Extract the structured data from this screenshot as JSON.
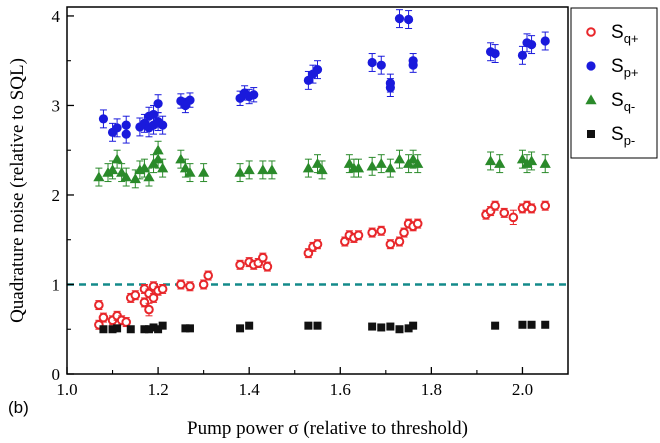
{
  "chart_data": {
    "type": "scatter",
    "panel_label": "(b)",
    "xlabel": "Pump power σ (relative to threshold)",
    "ylabel": "Quadrature noise (relative to SQL)",
    "xlim": [
      1.0,
      2.1
    ],
    "ylim": [
      0,
      4.1
    ],
    "xticks": [
      "1.0",
      "1.2",
      "1.4",
      "1.6",
      "1.8",
      "2.0"
    ],
    "yticks": [
      "0",
      "1",
      "2",
      "3",
      "4"
    ],
    "xtick_values": [
      1.0,
      1.2,
      1.4,
      1.6,
      1.8,
      2.0
    ],
    "ytick_values": [
      0,
      1,
      2,
      3,
      4
    ],
    "reference_line": {
      "y": 1.0,
      "style": "dashed",
      "color": "#138a8a"
    },
    "legend_position": "top-right",
    "series": [
      {
        "name": "S",
        "name_sub": "q+",
        "marker": "open-circle",
        "color": "#e8262a",
        "points": [
          [
            1.07,
            0.77
          ],
          [
            1.07,
            0.55
          ],
          [
            1.08,
            0.63
          ],
          [
            1.1,
            0.6
          ],
          [
            1.11,
            0.65
          ],
          [
            1.12,
            0.6
          ],
          [
            1.13,
            0.58
          ],
          [
            1.14,
            0.85
          ],
          [
            1.15,
            0.88
          ],
          [
            1.17,
            0.8
          ],
          [
            1.17,
            0.95
          ],
          [
            1.18,
            0.72
          ],
          [
            1.18,
            0.9
          ],
          [
            1.19,
            0.85
          ],
          [
            1.19,
            0.98
          ],
          [
            1.2,
            0.93
          ],
          [
            1.21,
            0.95
          ],
          [
            1.25,
            1.0
          ],
          [
            1.27,
            0.98
          ],
          [
            1.3,
            1.0
          ],
          [
            1.31,
            1.1
          ],
          [
            1.38,
            1.22
          ],
          [
            1.4,
            1.25
          ],
          [
            1.41,
            1.22
          ],
          [
            1.42,
            1.24
          ],
          [
            1.43,
            1.3
          ],
          [
            1.44,
            1.2
          ],
          [
            1.53,
            1.35
          ],
          [
            1.54,
            1.42
          ],
          [
            1.55,
            1.45
          ],
          [
            1.61,
            1.48
          ],
          [
            1.62,
            1.55
          ],
          [
            1.63,
            1.52
          ],
          [
            1.64,
            1.55
          ],
          [
            1.67,
            1.58
          ],
          [
            1.69,
            1.6
          ],
          [
            1.71,
            1.45
          ],
          [
            1.73,
            1.48
          ],
          [
            1.74,
            1.58
          ],
          [
            1.75,
            1.68
          ],
          [
            1.76,
            1.65
          ],
          [
            1.77,
            1.68
          ],
          [
            1.92,
            1.78
          ],
          [
            1.93,
            1.82
          ],
          [
            1.94,
            1.88
          ],
          [
            1.96,
            1.8
          ],
          [
            1.98,
            1.75
          ],
          [
            2.0,
            1.85
          ],
          [
            2.01,
            1.88
          ],
          [
            2.02,
            1.85
          ],
          [
            2.05,
            1.88
          ]
        ],
        "errors": [
          0.05,
          0.05,
          0.05,
          0.05,
          0.05,
          0.05,
          0.05,
          0.05,
          0.05,
          0.05,
          0.05,
          0.07,
          0.05,
          0.05,
          0.05,
          0.05,
          0.05,
          0.05,
          0.05,
          0.05,
          0.05,
          0.05,
          0.05,
          0.05,
          0.05,
          0.05,
          0.05,
          0.05,
          0.05,
          0.05,
          0.05,
          0.05,
          0.05,
          0.05,
          0.05,
          0.05,
          0.05,
          0.05,
          0.05,
          0.05,
          0.05,
          0.05,
          0.05,
          0.05,
          0.05,
          0.05,
          0.08,
          0.05,
          0.05,
          0.05,
          0.05
        ]
      },
      {
        "name": "S",
        "name_sub": "p+",
        "marker": "filled-circle",
        "color": "#1a1adc",
        "points": [
          [
            1.08,
            2.85
          ],
          [
            1.1,
            2.7
          ],
          [
            1.11,
            2.75
          ],
          [
            1.13,
            2.78
          ],
          [
            1.13,
            2.68
          ],
          [
            1.16,
            2.76
          ],
          [
            1.17,
            2.8
          ],
          [
            1.18,
            2.75
          ],
          [
            1.18,
            2.88
          ],
          [
            1.19,
            2.78
          ],
          [
            1.19,
            2.9
          ],
          [
            1.2,
            3.02
          ],
          [
            1.2,
            2.82
          ],
          [
            1.21,
            2.78
          ],
          [
            1.25,
            3.05
          ],
          [
            1.26,
            3.0
          ],
          [
            1.27,
            3.06
          ],
          [
            1.38,
            3.08
          ],
          [
            1.39,
            3.14
          ],
          [
            1.4,
            3.1
          ],
          [
            1.41,
            3.12
          ],
          [
            1.53,
            3.28
          ],
          [
            1.54,
            3.35
          ],
          [
            1.55,
            3.4
          ],
          [
            1.67,
            3.48
          ],
          [
            1.69,
            3.45
          ],
          [
            1.71,
            3.25
          ],
          [
            1.71,
            3.2
          ],
          [
            1.73,
            3.97
          ],
          [
            1.75,
            3.96
          ],
          [
            1.76,
            3.45
          ],
          [
            1.76,
            3.5
          ],
          [
            1.93,
            3.6
          ],
          [
            1.94,
            3.58
          ],
          [
            2.0,
            3.56
          ],
          [
            2.01,
            3.7
          ],
          [
            2.02,
            3.68
          ],
          [
            2.05,
            3.72
          ]
        ],
        "errors": [
          0.1,
          0.1,
          0.1,
          0.1,
          0.1,
          0.1,
          0.1,
          0.1,
          0.1,
          0.1,
          0.1,
          0.1,
          0.1,
          0.1,
          0.08,
          0.08,
          0.08,
          0.08,
          0.08,
          0.08,
          0.08,
          0.1,
          0.1,
          0.1,
          0.1,
          0.1,
          0.1,
          0.1,
          0.1,
          0.1,
          0.08,
          0.08,
          0.1,
          0.1,
          0.1,
          0.1,
          0.1,
          0.1
        ]
      },
      {
        "name": "S",
        "name_sub": "q-",
        "marker": "filled-triangle",
        "color": "#2a8a2a",
        "points": [
          [
            1.07,
            2.2
          ],
          [
            1.09,
            2.25
          ],
          [
            1.1,
            2.28
          ],
          [
            1.11,
            2.4
          ],
          [
            1.12,
            2.25
          ],
          [
            1.13,
            2.2
          ],
          [
            1.15,
            2.18
          ],
          [
            1.16,
            2.28
          ],
          [
            1.17,
            2.3
          ],
          [
            1.18,
            2.2
          ],
          [
            1.19,
            2.35
          ],
          [
            1.2,
            2.4
          ],
          [
            1.2,
            2.5
          ],
          [
            1.21,
            2.3
          ],
          [
            1.25,
            2.4
          ],
          [
            1.26,
            2.3
          ],
          [
            1.27,
            2.25
          ],
          [
            1.3,
            2.25
          ],
          [
            1.38,
            2.25
          ],
          [
            1.4,
            2.28
          ],
          [
            1.43,
            2.28
          ],
          [
            1.45,
            2.28
          ],
          [
            1.53,
            2.3
          ],
          [
            1.55,
            2.35
          ],
          [
            1.56,
            2.28
          ],
          [
            1.62,
            2.35
          ],
          [
            1.63,
            2.3
          ],
          [
            1.64,
            2.3
          ],
          [
            1.67,
            2.32
          ],
          [
            1.69,
            2.35
          ],
          [
            1.71,
            2.3
          ],
          [
            1.73,
            2.4
          ],
          [
            1.75,
            2.35
          ],
          [
            1.76,
            2.4
          ],
          [
            1.77,
            2.35
          ],
          [
            1.93,
            2.38
          ],
          [
            1.95,
            2.35
          ],
          [
            2.0,
            2.4
          ],
          [
            2.01,
            2.35
          ],
          [
            2.02,
            2.38
          ],
          [
            2.05,
            2.35
          ]
        ],
        "errors": [
          0.1,
          0.1,
          0.1,
          0.1,
          0.1,
          0.1,
          0.1,
          0.1,
          0.1,
          0.1,
          0.1,
          0.1,
          0.1,
          0.1,
          0.1,
          0.1,
          0.1,
          0.1,
          0.1,
          0.1,
          0.1,
          0.1,
          0.1,
          0.1,
          0.1,
          0.1,
          0.1,
          0.1,
          0.1,
          0.1,
          0.1,
          0.1,
          0.1,
          0.1,
          0.1,
          0.1,
          0.1,
          0.1,
          0.1,
          0.1,
          0.1
        ]
      },
      {
        "name": "S",
        "name_sub": "p-",
        "marker": "filled-square",
        "color": "#111111",
        "points": [
          [
            1.08,
            0.5
          ],
          [
            1.1,
            0.5
          ],
          [
            1.11,
            0.51
          ],
          [
            1.14,
            0.5
          ],
          [
            1.17,
            0.5
          ],
          [
            1.18,
            0.5
          ],
          [
            1.19,
            0.52
          ],
          [
            1.2,
            0.5
          ],
          [
            1.21,
            0.54
          ],
          [
            1.26,
            0.51
          ],
          [
            1.27,
            0.51
          ],
          [
            1.38,
            0.51
          ],
          [
            1.4,
            0.54
          ],
          [
            1.53,
            0.54
          ],
          [
            1.55,
            0.54
          ],
          [
            1.67,
            0.53
          ],
          [
            1.69,
            0.52
          ],
          [
            1.71,
            0.53
          ],
          [
            1.73,
            0.5
          ],
          [
            1.75,
            0.51
          ],
          [
            1.76,
            0.54
          ],
          [
            1.94,
            0.54
          ],
          [
            2.0,
            0.55
          ],
          [
            2.02,
            0.55
          ],
          [
            2.05,
            0.55
          ]
        ]
      }
    ]
  }
}
